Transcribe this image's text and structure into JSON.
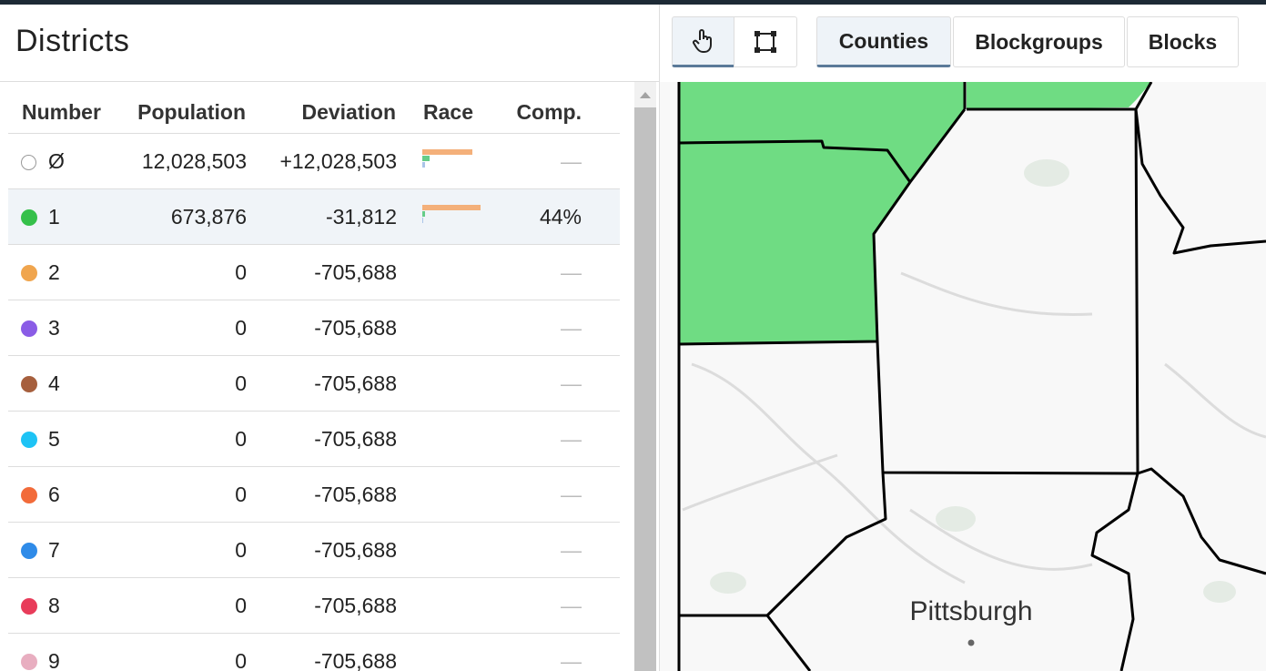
{
  "sidebar": {
    "title": "Districts",
    "columns": [
      "Number",
      "Population",
      "Deviation",
      "Race",
      "Comp."
    ],
    "rows": [
      {
        "number": "Ø",
        "population": "12,028,503",
        "deviation": "+12,028,503",
        "comp": "—"
      },
      {
        "number": "1",
        "color": "#35c04a",
        "population": "673,876",
        "deviation": "-31,812",
        "comp": "44%"
      },
      {
        "number": "2",
        "color": "#f0a54e",
        "population": "0",
        "deviation": "-705,688",
        "comp": "—"
      },
      {
        "number": "3",
        "color": "#8a5ce6",
        "population": "0",
        "deviation": "-705,688",
        "comp": "—"
      },
      {
        "number": "4",
        "color": "#a65f3d",
        "population": "0",
        "deviation": "-705,688",
        "comp": "—"
      },
      {
        "number": "5",
        "color": "#1ec3f5",
        "population": "0",
        "deviation": "-705,688",
        "comp": "—"
      },
      {
        "number": "6",
        "color": "#f26b3a",
        "population": "0",
        "deviation": "-705,688",
        "comp": "—"
      },
      {
        "number": "7",
        "color": "#2f8be8",
        "population": "0",
        "deviation": "-705,688",
        "comp": "—"
      },
      {
        "number": "8",
        "color": "#e83c5a",
        "population": "0",
        "deviation": "-705,688",
        "comp": "—"
      },
      {
        "number": "9",
        "color": "#e8aec0",
        "population": "0",
        "deviation": "-705,688",
        "comp": "—"
      }
    ]
  },
  "toolbar": {
    "buttons": [
      "Counties",
      "Blockgroups",
      "Blocks"
    ]
  },
  "map": {
    "labels": [
      "Pittsburgh"
    ]
  }
}
